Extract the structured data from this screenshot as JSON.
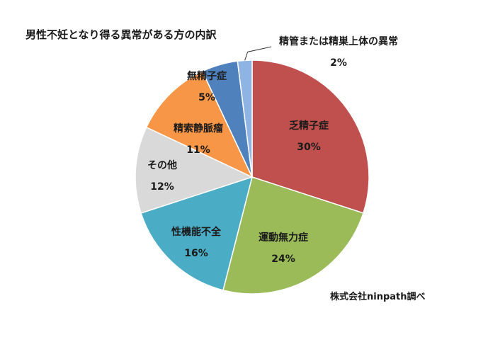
{
  "title": "男性不妊となり得る異常がある方の内訳",
  "source": "株式会社ninpath調べ",
  "chart_data": {
    "type": "pie",
    "title": "男性不妊となり得る異常がある方の内訳",
    "slices": [
      {
        "label": "乏精子症",
        "value": 30,
        "display": "30%",
        "color": "#c0504d"
      },
      {
        "label": "運動無力症",
        "value": 24,
        "display": "24%",
        "color": "#9bbb59"
      },
      {
        "label": "性機能不全",
        "value": 16,
        "display": "16%",
        "color": "#4bacc6"
      },
      {
        "label": "その他",
        "value": 12,
        "display": "12%",
        "color": "#d9d9d9"
      },
      {
        "label": "精索静脈瘤",
        "value": 11,
        "display": "11%",
        "color": "#f79646"
      },
      {
        "label": "無精子症",
        "value": 5,
        "display": "5%",
        "color": "#4f81bd"
      },
      {
        "label": "精管または精巣上体の異常",
        "value": 2,
        "display": "2%",
        "color": "#8eb4e3"
      }
    ],
    "legend": "none",
    "start_angle": "top",
    "direction": "clockwise"
  }
}
